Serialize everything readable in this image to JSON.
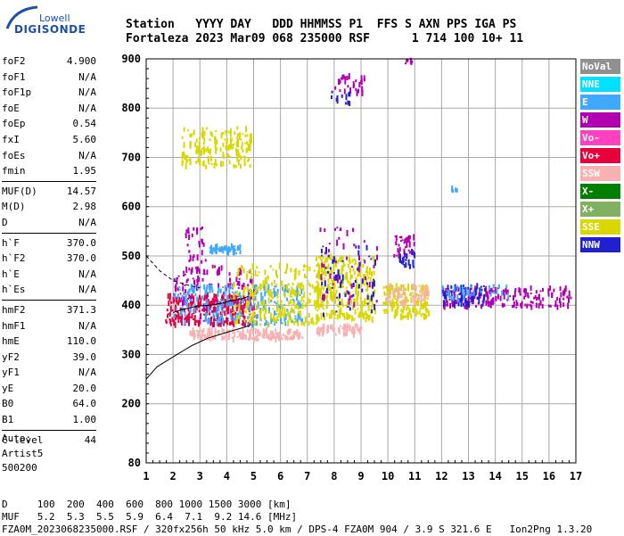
{
  "logo": {
    "line1": "Lowell",
    "line2": "DIGISONDE"
  },
  "header": {
    "line1": "Station   YYYY DAY   DDD HHMMSS P1  FFS S AXN PPS IGA PS",
    "line2": "Fortaleza 2023 Mar09 068 235000 RSF      1 714 100 10+ 11"
  },
  "params": [
    {
      "label": "foF2",
      "value": "4.900"
    },
    {
      "label": "foF1",
      "value": "N/A"
    },
    {
      "label": "foF1p",
      "value": "N/A"
    },
    {
      "label": "foE",
      "value": "N/A"
    },
    {
      "label": "foEp",
      "value": "0.54"
    },
    {
      "label": "fxI",
      "value": "5.60"
    },
    {
      "label": "foEs",
      "value": "N/A"
    },
    {
      "label": "fmin",
      "value": "1.95"
    },
    {
      "label": "MUF(D)",
      "value": "14.57"
    },
    {
      "label": "M(D)",
      "value": "2.98"
    },
    {
      "label": "D",
      "value": "N/A"
    },
    {
      "label": "h`F",
      "value": "370.0"
    },
    {
      "label": "h`F2",
      "value": "370.0"
    },
    {
      "label": "h`E",
      "value": "N/A"
    },
    {
      "label": "h`Es",
      "value": "N/A"
    },
    {
      "label": "hmF2",
      "value": "371.3"
    },
    {
      "label": "hmF1",
      "value": "N/A"
    },
    {
      "label": "hmE",
      "value": "110.0"
    },
    {
      "label": "yF2",
      "value": "39.0"
    },
    {
      "label": "yF1",
      "value": "N/A"
    },
    {
      "label": "yE",
      "value": "20.0"
    },
    {
      "label": "B0",
      "value": "64.0"
    },
    {
      "label": "B1",
      "value": "1.00"
    },
    {
      "label": "C-level",
      "value": "44"
    }
  ],
  "auto": {
    "line1": "Auto:",
    "line2": "Artist5",
    "line3": "500200"
  },
  "footer": {
    "line1": "D     100  200  400  600  800 1000 1500 3000 [km]",
    "line2": "MUF   5.2  5.3  5.5  5.9  6.4  7.1  9.2 14.6 [MHz]",
    "line3": "FZA0M_2023068235000.RSF / 320fx256h 50 kHz 5.0 km / DPS-4 FZA0M 904 / 3.9 S 321.6 E   Ion2Png 1.3.20"
  },
  "legend": [
    {
      "label": "NoVal",
      "color": "#909090"
    },
    {
      "label": "NNE",
      "color": "#00e0ff"
    },
    {
      "label": "E",
      "color": "#40a8ff"
    },
    {
      "label": "W",
      "color": "#b000b0"
    },
    {
      "label": "Vo-",
      "color": "#ff40c0"
    },
    {
      "label": "Vo+",
      "color": "#e8003c"
    },
    {
      "label": "SSW",
      "color": "#f8b0b0"
    },
    {
      "label": "X-",
      "color": "#008000"
    },
    {
      "label": "X+",
      "color": "#80b060"
    },
    {
      "label": "SSE",
      "color": "#d8d800"
    },
    {
      "label": "NNW",
      "color": "#2020d0"
    }
  ],
  "chart_data": {
    "type": "scatter",
    "title": "",
    "xlabel": "",
    "ylabel": "",
    "xlim": [
      1,
      17
    ],
    "ylim": [
      80,
      900
    ],
    "x_ticks": [
      1,
      2,
      3,
      4,
      5,
      6,
      7,
      8,
      9,
      10,
      11,
      12,
      13,
      14,
      15,
      16,
      17
    ],
    "y_ticks": [
      80,
      200,
      300,
      400,
      500,
      600,
      700,
      800,
      900
    ],
    "grid": true,
    "clusters": [
      {
        "series": "SSE",
        "x": [
          2.3,
          4.9
        ],
        "y": [
          680,
          760
        ],
        "n": 180
      },
      {
        "series": "W",
        "x": [
          8.0,
          9.1
        ],
        "y": [
          830,
          865
        ],
        "n": 30
      },
      {
        "series": "NNW",
        "x": [
          7.8,
          8.6
        ],
        "y": [
          808,
          835
        ],
        "n": 12
      },
      {
        "series": "W",
        "x": [
          10.6,
          10.9
        ],
        "y": [
          890,
          900
        ],
        "n": 6
      },
      {
        "series": "W",
        "x": [
          10.2,
          11.0
        ],
        "y": [
          500,
          545
        ],
        "n": 40
      },
      {
        "series": "NNW",
        "x": [
          10.4,
          11.0
        ],
        "y": [
          470,
          510
        ],
        "n": 20
      },
      {
        "series": "E",
        "x": [
          3.3,
          4.5
        ],
        "y": [
          505,
          520
        ],
        "n": 50
      },
      {
        "series": "W",
        "x": [
          2.0,
          5.0
        ],
        "y": [
          360,
          480
        ],
        "n": 180
      },
      {
        "series": "Vo+",
        "x": [
          1.7,
          5.0
        ],
        "y": [
          360,
          420
        ],
        "n": 220
      },
      {
        "series": "E",
        "x": [
          2.0,
          6.8
        ],
        "y": [
          360,
          440
        ],
        "n": 240
      },
      {
        "series": "SSW",
        "x": [
          2.6,
          6.8
        ],
        "y": [
          330,
          350
        ],
        "n": 160
      },
      {
        "series": "SSE",
        "x": [
          4.2,
          7.5
        ],
        "y": [
          360,
          480
        ],
        "n": 260
      },
      {
        "series": "SSE",
        "x": [
          7.3,
          9.5
        ],
        "y": [
          370,
          500
        ],
        "n": 300
      },
      {
        "series": "SSW",
        "x": [
          7.3,
          9.0
        ],
        "y": [
          340,
          360
        ],
        "n": 70
      },
      {
        "series": "NNW",
        "x": [
          7.5,
          9.5
        ],
        "y": [
          380,
          520
        ],
        "n": 60
      },
      {
        "series": "W",
        "x": [
          7.4,
          9.6
        ],
        "y": [
          400,
          560
        ],
        "n": 50
      },
      {
        "series": "SSE",
        "x": [
          9.8,
          11.5
        ],
        "y": [
          375,
          440
        ],
        "n": 160
      },
      {
        "series": "SSW",
        "x": [
          9.8,
          11.5
        ],
        "y": [
          400,
          440
        ],
        "n": 60
      },
      {
        "series": "W",
        "x": [
          12.0,
          16.8
        ],
        "y": [
          395,
          435
        ],
        "n": 200
      },
      {
        "series": "NNW",
        "x": [
          12.0,
          13.6
        ],
        "y": [
          400,
          440
        ],
        "n": 70
      },
      {
        "series": "E",
        "x": [
          12.0,
          14.5
        ],
        "y": [
          410,
          440
        ],
        "n": 40
      },
      {
        "series": "E",
        "x": [
          12.3,
          12.6
        ],
        "y": [
          630,
          640
        ],
        "n": 5
      },
      {
        "series": "W",
        "x": [
          2.4,
          3.2
        ],
        "y": [
          470,
          560
        ],
        "n": 30
      }
    ],
    "profile_line": {
      "x": [
        1.0,
        1.4,
        2.0,
        2.7,
        3.3,
        4.0,
        4.7,
        4.9
      ],
      "y": [
        250,
        275,
        295,
        318,
        333,
        345,
        356,
        360
      ]
    },
    "trace_line": {
      "x": [
        2.0,
        2.4,
        2.9,
        3.4,
        3.9,
        4.2,
        4.5,
        4.8
      ],
      "y": [
        385,
        392,
        398,
        400,
        405,
        410,
        412,
        418
      ]
    },
    "dashed_line": {
      "x": [
        1.0,
        1.5,
        2.0,
        2.6,
        3.0
      ],
      "y": [
        500,
        470,
        450,
        440,
        435
      ]
    }
  }
}
